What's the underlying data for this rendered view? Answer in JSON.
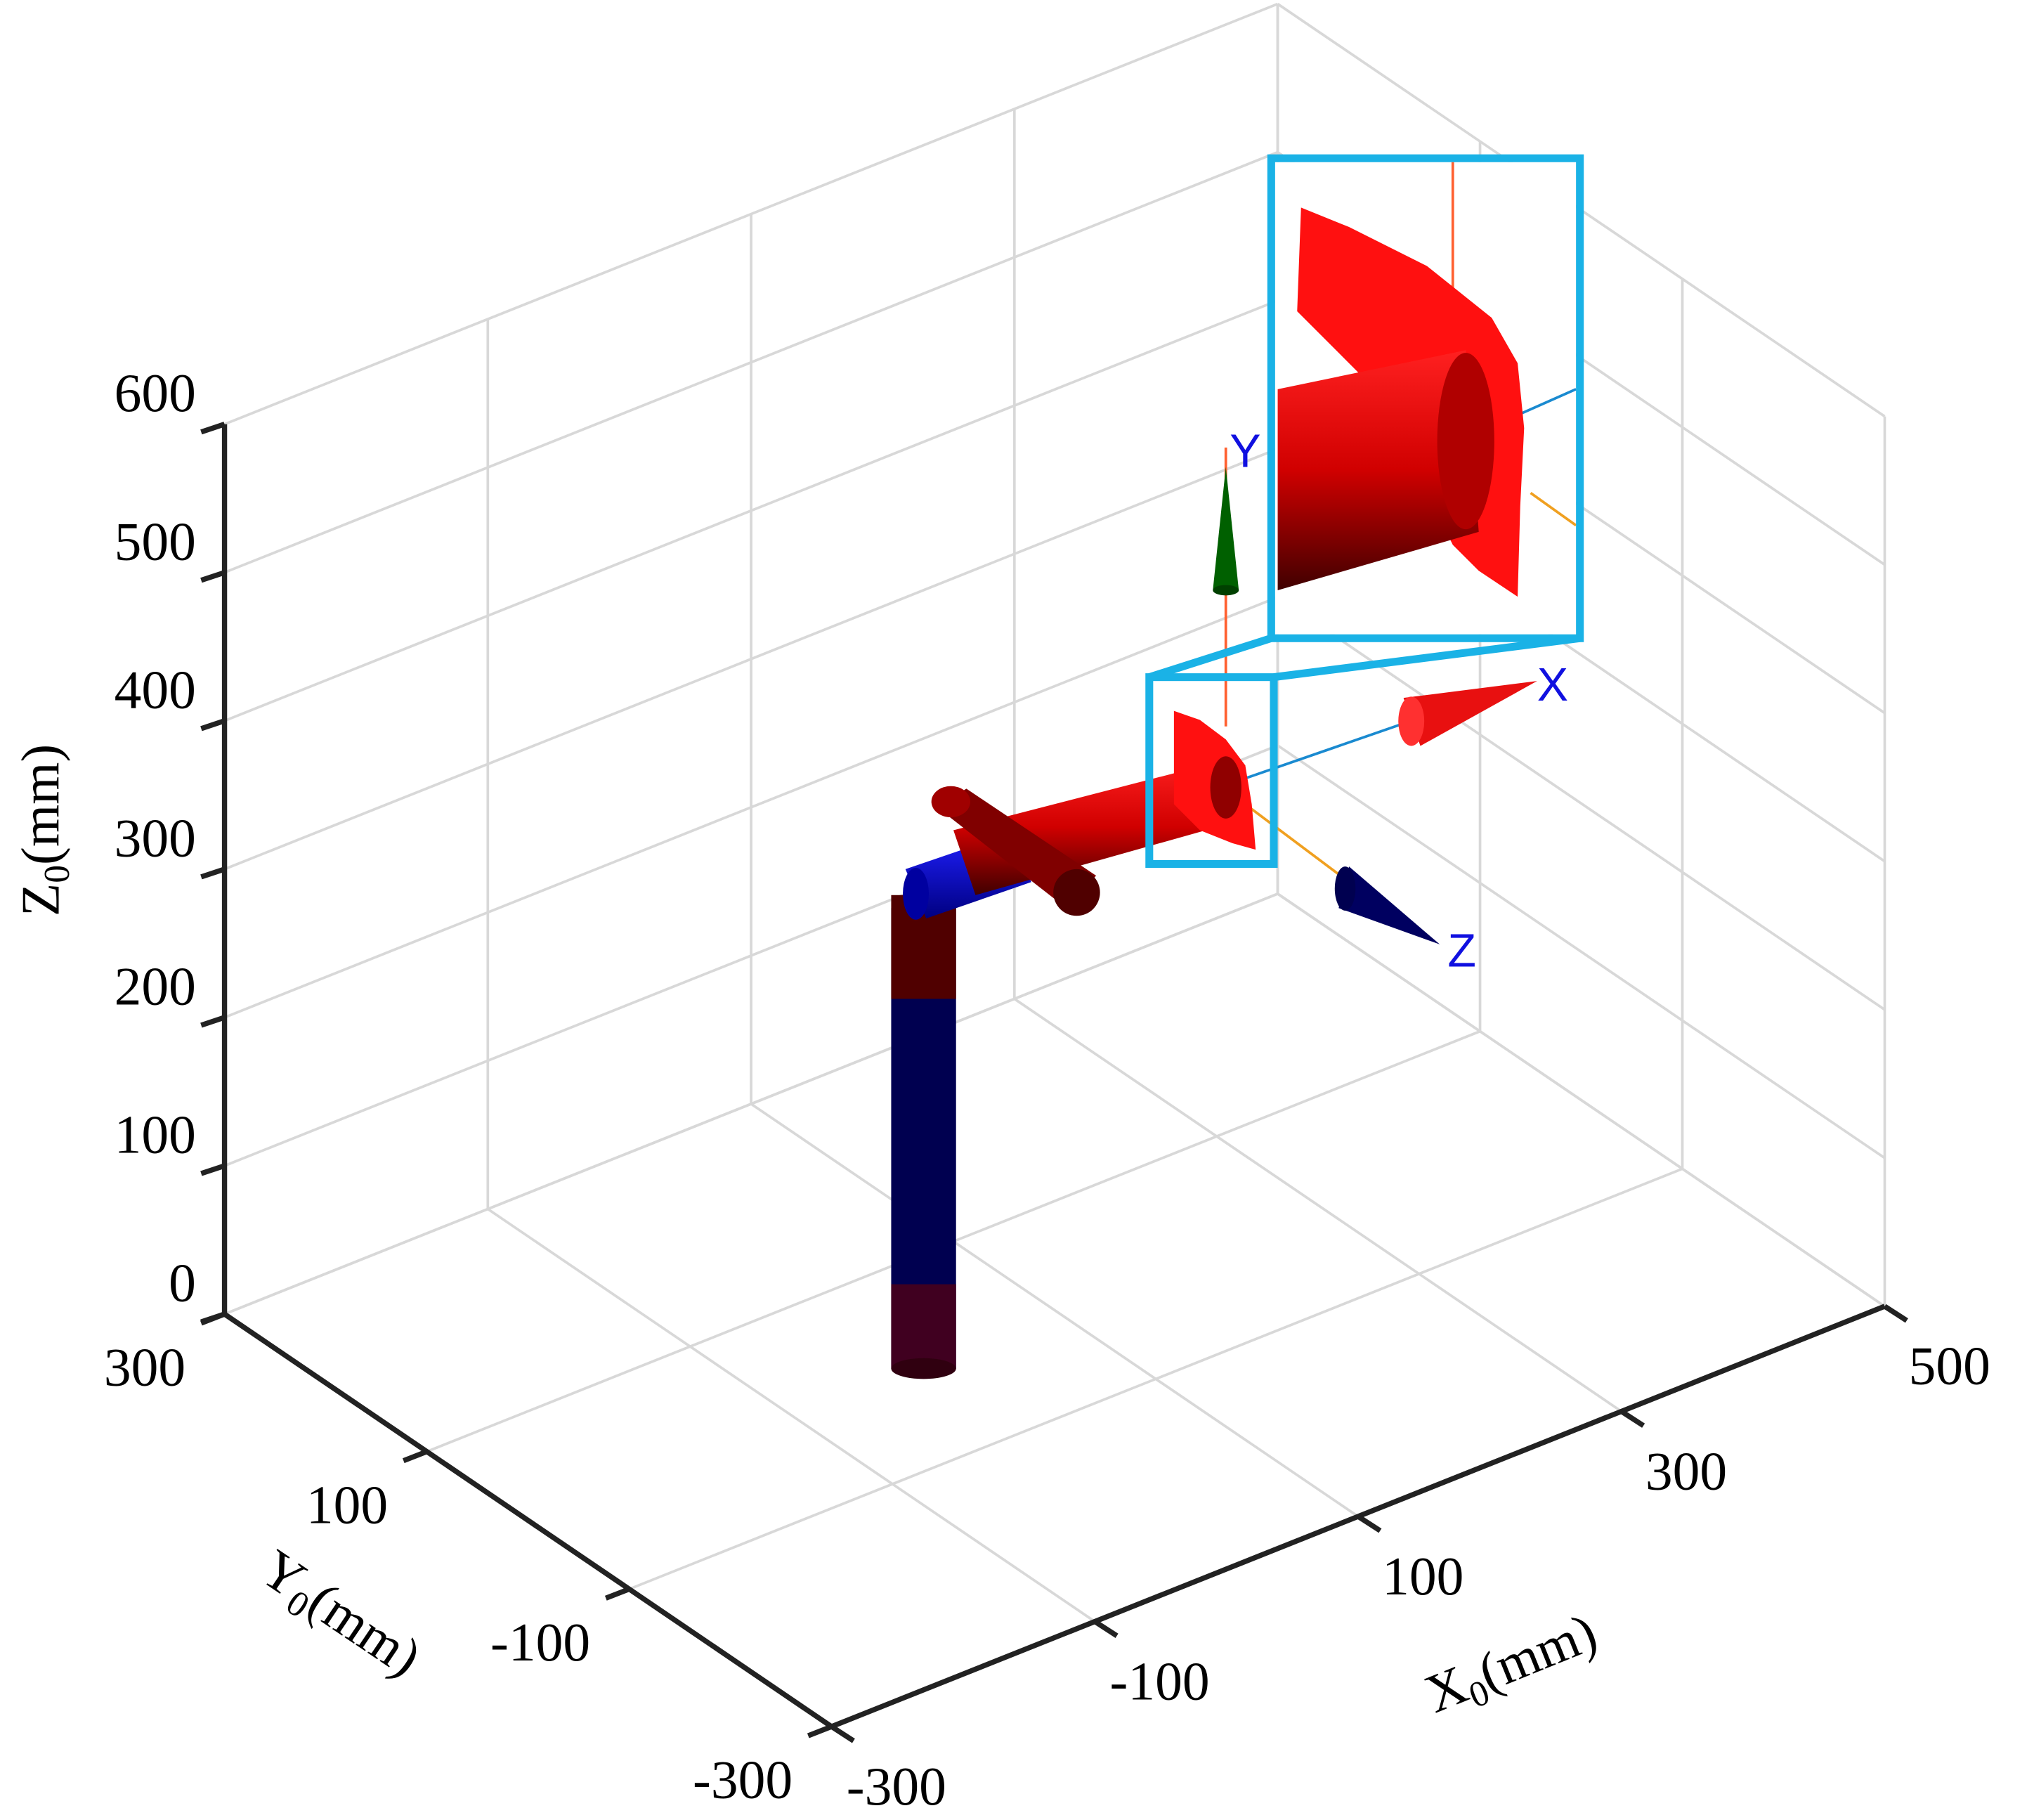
{
  "chart_data": {
    "type": "robot3d",
    "xlim": [
      -300,
      500
    ],
    "xticks": [
      -300,
      -100,
      100,
      300,
      500
    ],
    "ylim": [
      -300,
      300
    ],
    "yticks": [
      -300,
      -100,
      100,
      300
    ],
    "zlim": [
      0,
      600
    ],
    "zticks": [
      0,
      100,
      200,
      300,
      400,
      500,
      600
    ],
    "grid": true,
    "x_label": {
      "symbol": "X",
      "subscript": "0",
      "unit": "(mm)"
    },
    "y_label": {
      "symbol": "Y",
      "subscript": "0",
      "unit": "(mm)"
    },
    "z_label": {
      "symbol": "Z",
      "subscript": "0",
      "unit": "(mm)"
    },
    "frame_labels": [
      "X",
      "Y",
      "Z"
    ]
  }
}
